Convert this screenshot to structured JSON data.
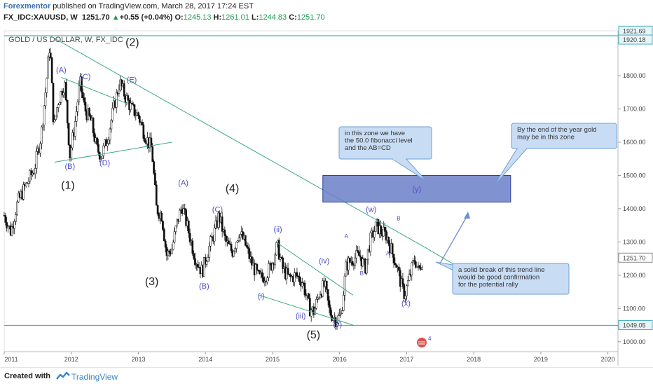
{
  "header": {
    "author": "Forexmentor",
    "published_text": " published on TradingView.com, March 28, 2017 17:24 EST",
    "symbol_line": "FX_IDC:XAUUSD, W",
    "last": "1251.70",
    "change": "+0.55 (+0.04%)",
    "o_label": "O:",
    "o": "1245.13",
    "h_label": "H:",
    "h": "1261.01",
    "l_label": "L:",
    "l": "1244.83",
    "c_label": "C:",
    "c": "1251.70"
  },
  "chart_data": {
    "type": "candlestick",
    "title": "GOLD / US DOLLAR, W, FX_IDC",
    "ylim": [
      970,
      1935
    ],
    "xlim": [
      2011.0,
      2020.15
    ],
    "x_ticks": [
      "2011",
      "2012",
      "2013",
      "2014",
      "2015",
      "2016",
      "2017",
      "2018",
      "2019",
      "2020"
    ],
    "y_ticks": [
      "1000.00",
      "1100.00",
      "1200.00",
      "1300.00",
      "1400.00",
      "1500.00",
      "1600.00",
      "1700.00",
      "1800.00",
      "1900.00"
    ],
    "price_labels": [
      {
        "text": "1921.69",
        "value": 1921.69
      },
      {
        "text": "1920.18",
        "value": 1920.18
      },
      {
        "text": "1251.70",
        "value": 1251.7
      },
      {
        "text": "1049.05",
        "value": 1049.05
      }
    ],
    "horizontal_levels": [
      1920.18,
      1049.05
    ],
    "price_path": [
      [
        2011.0,
        1380
      ],
      [
        2011.1,
        1330
      ],
      [
        2011.2,
        1420
      ],
      [
        2011.35,
        1480
      ],
      [
        2011.45,
        1520
      ],
      [
        2011.55,
        1620
      ],
      [
        2011.62,
        1760
      ],
      [
        2011.68,
        1900
      ],
      [
        2011.74,
        1640
      ],
      [
        2011.8,
        1720
      ],
      [
        2011.9,
        1780
      ],
      [
        2011.98,
        1560
      ],
      [
        2012.05,
        1650
      ],
      [
        2012.13,
        1780
      ],
      [
        2012.2,
        1700
      ],
      [
        2012.3,
        1660
      ],
      [
        2012.38,
        1580
      ],
      [
        2012.45,
        1560
      ],
      [
        2012.55,
        1620
      ],
      [
        2012.65,
        1720
      ],
      [
        2012.72,
        1780
      ],
      [
        2012.8,
        1740
      ],
      [
        2012.9,
        1700
      ],
      [
        2013.0,
        1680
      ],
      [
        2013.1,
        1620
      ],
      [
        2013.2,
        1580
      ],
      [
        2013.27,
        1400
      ],
      [
        2013.35,
        1380
      ],
      [
        2013.42,
        1260
      ],
      [
        2013.5,
        1280
      ],
      [
        2013.58,
        1360
      ],
      [
        2013.65,
        1410
      ],
      [
        2013.75,
        1330
      ],
      [
        2013.85,
        1250
      ],
      [
        2013.95,
        1210
      ],
      [
        2014.05,
        1280
      ],
      [
        2014.15,
        1340
      ],
      [
        2014.2,
        1380
      ],
      [
        2014.3,
        1300
      ],
      [
        2014.4,
        1270
      ],
      [
        2014.5,
        1330
      ],
      [
        2014.58,
        1300
      ],
      [
        2014.68,
        1240
      ],
      [
        2014.8,
        1190
      ],
      [
        2014.9,
        1200
      ],
      [
        2015.0,
        1240
      ],
      [
        2015.07,
        1290
      ],
      [
        2015.15,
        1220
      ],
      [
        2015.25,
        1190
      ],
      [
        2015.35,
        1200
      ],
      [
        2015.45,
        1180
      ],
      [
        2015.55,
        1100
      ],
      [
        2015.62,
        1090
      ],
      [
        2015.7,
        1150
      ],
      [
        2015.78,
        1170
      ],
      [
        2015.85,
        1090
      ],
      [
        2015.95,
        1065
      ],
      [
        2016.02,
        1080
      ],
      [
        2016.1,
        1230
      ],
      [
        2016.2,
        1250
      ],
      [
        2016.3,
        1260
      ],
      [
        2016.38,
        1220
      ],
      [
        2016.45,
        1300
      ],
      [
        2016.55,
        1350
      ],
      [
        2016.62,
        1330
      ],
      [
        2016.7,
        1320
      ],
      [
        2016.78,
        1270
      ],
      [
        2016.85,
        1230
      ],
      [
        2016.92,
        1170
      ],
      [
        2016.97,
        1140
      ],
      [
        2017.05,
        1200
      ],
      [
        2017.12,
        1250
      ],
      [
        2017.18,
        1210
      ],
      [
        2017.24,
        1251.7
      ]
    ],
    "trendlines": [
      {
        "from": [
          2011.7,
          1918
        ],
        "to": [
          2017.28,
          1283
        ]
      },
      {
        "from": [
          2017.28,
          1283
        ],
        "to": [
          2018.3,
          1162
        ]
      },
      {
        "from": [
          2011.85,
          1795
        ],
        "to": [
          2012.85,
          1715
        ]
      },
      {
        "from": [
          2011.75,
          1540
        ],
        "to": [
          2013.5,
          1600
        ]
      },
      {
        "from": [
          2015.05,
          1300
        ],
        "to": [
          2016.2,
          1140
        ]
      },
      {
        "from": [
          2014.8,
          1140
        ],
        "to": [
          2016.2,
          1050
        ]
      }
    ],
    "zone": {
      "x": [
        2015.75,
        2018.55
      ],
      "y": [
        1420,
        1500
      ],
      "label": "(y)"
    },
    "wave_labels_major": [
      {
        "text": "(1)",
        "x": 2011.95,
        "y": 1460
      },
      {
        "text": "(2)",
        "x": 2012.91,
        "y": 1890
      },
      {
        "text": "(3)",
        "x": 2013.2,
        "y": 1170
      },
      {
        "text": "(4)",
        "x": 2014.4,
        "y": 1450
      },
      {
        "text": "(5)",
        "x": 2015.61,
        "y": 1010
      }
    ],
    "wave_labels_minor": [
      {
        "text": "(A)",
        "x": 2011.85,
        "y": 1810
      },
      {
        "text": "(C)",
        "x": 2012.21,
        "y": 1790
      },
      {
        "text": "(E)",
        "x": 2012.9,
        "y": 1780
      },
      {
        "text": "(B)",
        "x": 2011.98,
        "y": 1520
      },
      {
        "text": "(D)",
        "x": 2012.5,
        "y": 1530
      },
      {
        "text": "(A)",
        "x": 2013.67,
        "y": 1470
      },
      {
        "text": "(C)",
        "x": 2014.18,
        "y": 1390
      },
      {
        "text": "(B)",
        "x": 2013.98,
        "y": 1160
      },
      {
        "text": "(ii)",
        "x": 2015.08,
        "y": 1330
      },
      {
        "text": "(iv)",
        "x": 2015.77,
        "y": 1235
      },
      {
        "text": "(i)",
        "x": 2014.83,
        "y": 1130
      },
      {
        "text": "(iii)",
        "x": 2015.42,
        "y": 1070
      },
      {
        "text": "(v)",
        "x": 2015.97,
        "y": 1045
      },
      {
        "text": "(w)",
        "x": 2016.47,
        "y": 1390
      },
      {
        "text": "(x)",
        "x": 2016.99,
        "y": 1108
      }
    ],
    "wave_labels_tiny": [
      {
        "text": "A",
        "x": 2016.1,
        "y": 1311
      },
      {
        "text": "B",
        "x": 2016.33,
        "y": 1200
      },
      {
        "text": "A",
        "x": 2016.72,
        "y": 1260
      },
      {
        "text": "B",
        "x": 2016.88,
        "y": 1365
      }
    ],
    "annotations": [
      {
        "id": "fib",
        "lines": [
          "in this zone we have",
          "the 50.0 fibonacci level",
          "and the AB=CD"
        ]
      },
      {
        "id": "eoy",
        "lines": [
          "By the end of the year gold",
          "may be in this zone"
        ]
      },
      {
        "id": "break",
        "lines": [
          "a solid break of this trend line",
          "would be good confirmation",
          "for the potential rally"
        ]
      }
    ]
  },
  "footer": {
    "created_with": "Created with",
    "brand": "TradingView"
  },
  "colors": {
    "trendline": "#3aaa88",
    "level": "#4ab0c0",
    "zone_fill": "#6a7fc8",
    "zone_stroke": "#2a3f9a",
    "note_fill": "#c8dcf4",
    "note_stroke": "#6c9fd6",
    "wave_label": "#4e4ec8",
    "candle_up": "#ffffff",
    "candle_down": "#111111"
  }
}
